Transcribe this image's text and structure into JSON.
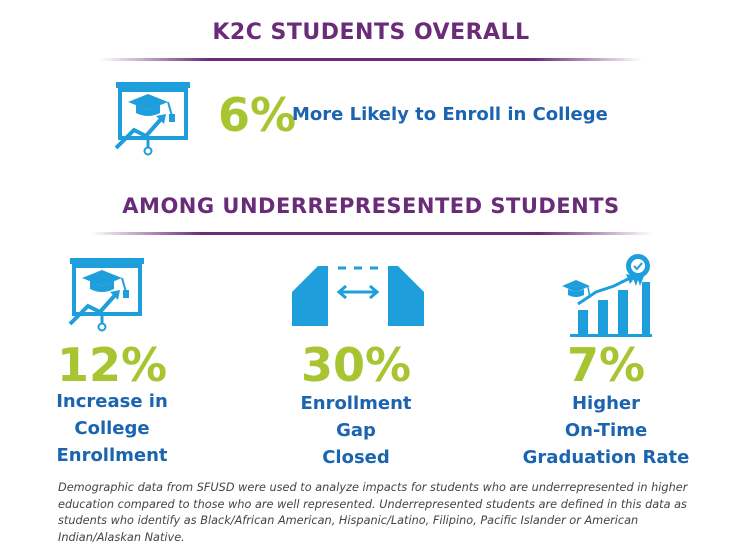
{
  "overall": {
    "heading": "K2C STUDENTS OVERALL",
    "percent": "6%",
    "label": "More Likely to Enroll in College",
    "icon": "graduation-presentation-icon"
  },
  "underrepresented": {
    "heading": "AMONG UNDERREPRESENTED STUDENTS",
    "items": [
      {
        "percent": "12%",
        "label_lines": [
          "Increase in",
          "College",
          "Enrollment"
        ],
        "icon": "graduation-presentation-icon"
      },
      {
        "percent": "30%",
        "label_lines": [
          "Enrollment",
          "Gap",
          "Closed"
        ],
        "icon": "bridge-gap-icon"
      },
      {
        "percent": "7%",
        "label_lines": [
          "Higher",
          "On-Time",
          "Graduation Rate"
        ],
        "icon": "graduation-bar-chart-icon"
      }
    ]
  },
  "footnote": "Demographic data from SFUSD were used to analyze impacts for students who are underrepresented in higher education compared to those who are well represented. Underrepresented students are defined in this data as students who identify as Black/African American, Hispanic/Latino, Filipino, Pacific Islander or American Indian/Alaskan Native.",
  "colors": {
    "heading": "#6a2c78",
    "percent": "#a8c531",
    "label": "#1b64b0",
    "icon": "#1e9fdc"
  }
}
